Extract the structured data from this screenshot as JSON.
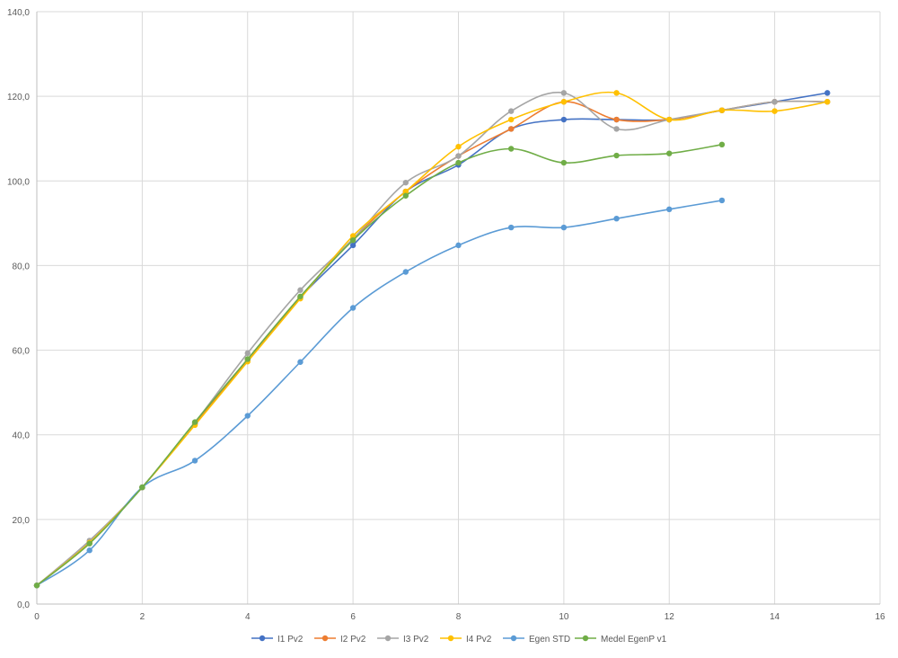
{
  "chart_data": {
    "type": "line",
    "smooth": true,
    "grid": true,
    "legend_position": "bottom",
    "xlim": [
      0,
      16
    ],
    "ylim": [
      0,
      140
    ],
    "x_ticks": [
      0,
      2,
      4,
      6,
      8,
      10,
      12,
      14,
      16
    ],
    "y_ticks": [
      0,
      20,
      40,
      60,
      80,
      100,
      120,
      140
    ],
    "x_tick_labels": [
      "0",
      "2",
      "4",
      "6",
      "8",
      "10",
      "12",
      "14",
      "16"
    ],
    "y_tick_labels": [
      "0,0",
      "20,0",
      "40,0",
      "60,0",
      "80,0",
      "100,0",
      "120,0",
      "140,0"
    ],
    "series": [
      {
        "name": "I1 Pv2",
        "color": "#4472C4",
        "x": [
          0,
          1,
          2,
          3,
          4,
          5,
          6,
          7,
          8,
          9,
          10,
          11,
          12,
          13,
          14,
          15
        ],
        "y": [
          4.4,
          14.5,
          27.6,
          42.6,
          57.8,
          72.5,
          84.8,
          97.5,
          103.8,
          112.3,
          114.5,
          114.5,
          114.5,
          116.7,
          118.7,
          120.8
        ]
      },
      {
        "name": "I2 Pv2",
        "color": "#ED7D31",
        "x": [
          0,
          1,
          2,
          3,
          4,
          5,
          6,
          7,
          8,
          9,
          10,
          11,
          12,
          13,
          14,
          15
        ],
        "y": [
          4.4,
          14.5,
          27.6,
          42.6,
          57.8,
          72.5,
          86.3,
          97.5,
          105.9,
          112.3,
          118.7,
          114.5,
          114.5,
          116.7,
          118.7,
          118.7
        ]
      },
      {
        "name": "I3 Pv2",
        "color": "#A5A5A5",
        "x": [
          0,
          1,
          2,
          3,
          4,
          5,
          6,
          7,
          8,
          9,
          10,
          11,
          12,
          13,
          14,
          15
        ],
        "y": [
          4.4,
          15.0,
          27.6,
          42.9,
          59.3,
          74.2,
          86.3,
          99.6,
          105.9,
          116.5,
          120.8,
          112.3,
          114.5,
          116.7,
          118.7,
          118.7
        ]
      },
      {
        "name": "I4 Pv2",
        "color": "#FFC000",
        "x": [
          0,
          1,
          2,
          3,
          4,
          5,
          6,
          7,
          8,
          9,
          10,
          11,
          12,
          13,
          14,
          15
        ],
        "y": [
          4.4,
          14.5,
          27.6,
          42.3,
          57.3,
          72.2,
          87.0,
          97.5,
          108.1,
          114.5,
          118.7,
          120.8,
          114.5,
          116.7,
          116.5,
          118.7
        ]
      },
      {
        "name": "Egen STD",
        "color": "#5B9BD5",
        "x": [
          0,
          1,
          2,
          3,
          4,
          5,
          6,
          7,
          8,
          9,
          10,
          11,
          12,
          13
        ],
        "y": [
          4.4,
          12.7,
          27.6,
          33.9,
          44.5,
          57.2,
          70.0,
          78.5,
          84.8,
          89.0,
          89.0,
          91.1,
          93.3,
          95.4
        ]
      },
      {
        "name": "Medel EgenP v1",
        "color": "#70AD47",
        "x": [
          0,
          1,
          2,
          3,
          4,
          5,
          6,
          7,
          8,
          9,
          10,
          11,
          12,
          13
        ],
        "y": [
          4.4,
          14.3,
          27.6,
          43.0,
          57.9,
          72.7,
          86.0,
          96.5,
          104.3,
          107.6,
          104.3,
          106.0,
          106.5,
          108.6
        ]
      }
    ]
  }
}
